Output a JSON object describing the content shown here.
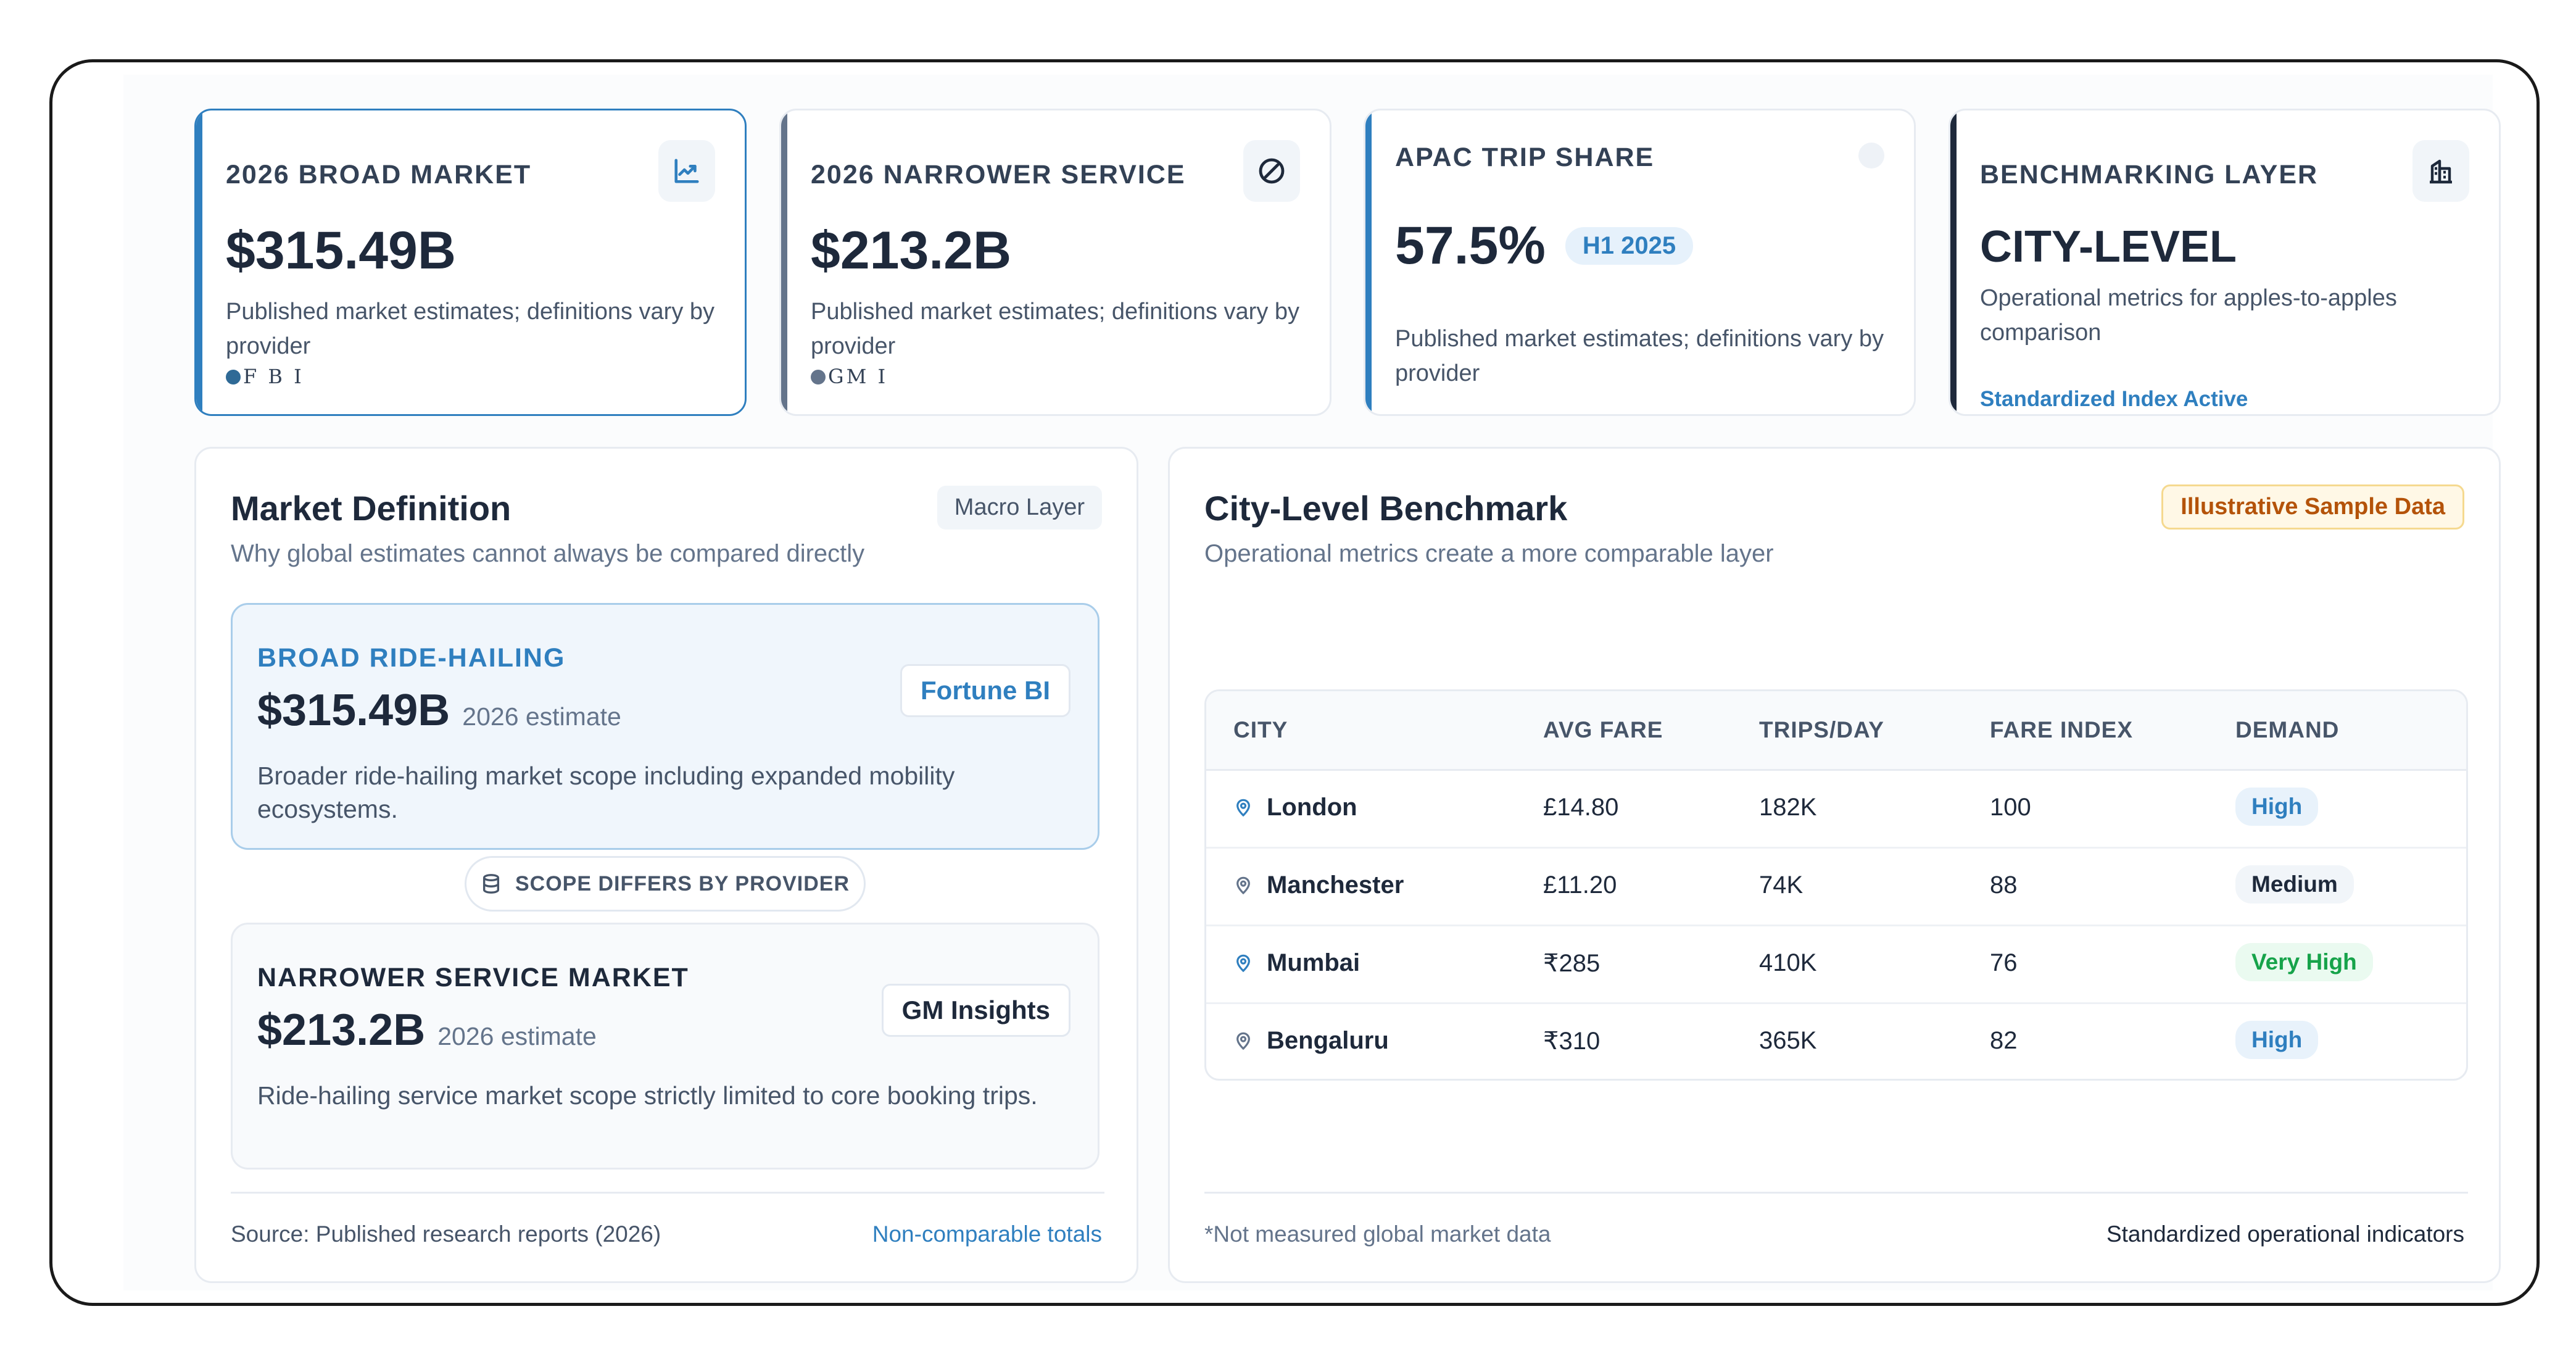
{
  "kpis": [
    {
      "label": "2026 BROAD MARKET",
      "value": "$315.49B",
      "desc": "Published market estimates; definitions vary by provider",
      "source": "F B I",
      "icon": "line-chart-icon",
      "accent": "#2f7fbf"
    },
    {
      "label": "2026 NARROWER SERVICE",
      "value": "$213.2B",
      "desc": "Published market estimates; definitions vary by provider",
      "source": "GM I",
      "icon": "pie-chart-icon",
      "accent": "#64748b"
    },
    {
      "label": "APAC TRIP SHARE",
      "value": "57.5%",
      "pill": "H1 2025",
      "desc": "Published market estimates; definitions vary by provider",
      "icon": "circle-icon",
      "accent": "#2f7fbf"
    },
    {
      "label": "BENCHMARKING LAYER",
      "value": "CITY-LEVEL",
      "desc": "Operational metrics for apples-to-apples comparison",
      "status": "Standardized Index Active",
      "icon": "buildings-icon",
      "accent": "#1e293b"
    }
  ],
  "market": {
    "title": "Market Definition",
    "subtitle": "Why global estimates cannot always be compared directly",
    "tag": "Macro Layer",
    "broad": {
      "label": "BROAD RIDE-HAILING",
      "value": "$315.49B",
      "note": "2026 estimate",
      "desc": "Broader ride-hailing market scope including expanded mobility ecosystems.",
      "badge": "Fortune BI"
    },
    "scope": "SCOPE DIFFERS BY PROVIDER",
    "narrow": {
      "label": "NARROWER SERVICE MARKET",
      "value": "$213.2B",
      "note": "2026 estimate",
      "desc": "Ride-hailing service market scope strictly limited to core booking trips.",
      "badge": "GM Insights"
    },
    "footer_source": "Source: Published research reports (2026)",
    "footer_link": "Non-comparable totals"
  },
  "benchmark": {
    "title": "City-Level Benchmark",
    "subtitle": "Operational metrics create a more comparable layer",
    "tag": "Illustrative Sample Data",
    "columns": [
      "CITY",
      "AVG FARE",
      "TRIPS/DAY",
      "FARE INDEX",
      "DEMAND"
    ],
    "rows": [
      {
        "city": "London",
        "fare": "£14.80",
        "trips": "182K",
        "index": "100",
        "demand": "High",
        "demand_level": "high"
      },
      {
        "city": "Manchester",
        "fare": "£11.20",
        "trips": "74K",
        "index": "88",
        "demand": "Medium",
        "demand_level": "medium"
      },
      {
        "city": "Mumbai",
        "fare": "₹285",
        "trips": "410K",
        "index": "76",
        "demand": "Very High",
        "demand_level": "veryhigh"
      },
      {
        "city": "Bengaluru",
        "fare": "₹310",
        "trips": "365K",
        "index": "82",
        "demand": "High",
        "demand_level": "high"
      }
    ],
    "footer_note": "*Not measured global market data",
    "footer_right": "Standardized operational indicators"
  }
}
